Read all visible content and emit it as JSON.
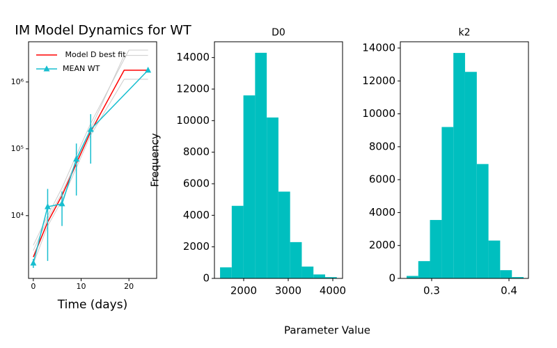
{
  "supxlabel": "Parameter Value",
  "chart_data": [
    {
      "type": "line",
      "title": "IM Model Dynamics for WT",
      "xlabel": "Time (days)",
      "log_y": true,
      "xlim": [
        -1,
        25.8
      ],
      "xticks": [
        0,
        10,
        20
      ],
      "ylim": [
        1150,
        4000000
      ],
      "yticks": [
        {
          "value": 10000,
          "label": "10⁴"
        },
        {
          "value": 100000,
          "label": "10⁵"
        },
        {
          "value": 1000000,
          "label": "10⁶"
        }
      ],
      "legend": "upper left",
      "series": [
        {
          "color": "#cccccc",
          "x": [
            0,
            3,
            6,
            9,
            12,
            19,
            24
          ],
          "values": [
            3000,
            9000,
            22000,
            65000,
            200000,
            2500000,
            2500000
          ]
        },
        {
          "color": "#cccccc",
          "x": [
            0,
            3,
            6,
            9,
            12,
            19,
            24
          ],
          "values": [
            1900,
            7000,
            17000,
            52000,
            160000,
            1100000,
            1100000
          ]
        },
        {
          "color": "#cccccc",
          "x": [
            0,
            3,
            6,
            9,
            12,
            20,
            24
          ],
          "values": [
            3600,
            10000,
            26000,
            80000,
            240000,
            3000000,
            3000000
          ]
        },
        {
          "name": " Model D best fit",
          "color": "#ff0000",
          "x": [
            0,
            3,
            6,
            9,
            12,
            19,
            24
          ],
          "values": [
            2400,
            8000,
            20000,
            60000,
            180000,
            1500000,
            1500000
          ]
        },
        {
          "name": "MEAN WT",
          "color": "#17becf",
          "marker": "triangle",
          "x": [
            0,
            3,
            6,
            9,
            12,
            24
          ],
          "values": [
            1950,
            13600,
            15000,
            70000,
            195000,
            1500000
          ],
          "errors": [
            300,
            11500,
            8000,
            50000,
            135000,
            100000
          ]
        }
      ]
    },
    {
      "type": "histogram",
      "title": "D0",
      "ylabel": "Frequency",
      "color": "#00bfbf",
      "bins": [
        1470,
        1732,
        1994,
        2256,
        2518,
        2780,
        3042,
        3304,
        3566,
        3828,
        4090
      ],
      "values": [
        700,
        4600,
        11600,
        14300,
        10200,
        5500,
        2300,
        750,
        250,
        80
      ],
      "xlim": [
        1344,
        4219
      ],
      "xticks": [
        2000,
        3000,
        4000
      ],
      "ylim": [
        0,
        15000
      ],
      "yticks": [
        0,
        2000,
        4000,
        6000,
        8000,
        10000,
        12000,
        14000
      ]
    },
    {
      "type": "histogram",
      "title": "k2",
      "color": "#00bfbf",
      "bins": [
        0.2676,
        0.2827,
        0.2978,
        0.313,
        0.3281,
        0.3432,
        0.3584,
        0.3735,
        0.3886,
        0.4038,
        0.4189
      ],
      "values": [
        150,
        1050,
        3550,
        9200,
        13700,
        12550,
        6950,
        2300,
        500,
        80
      ],
      "xlim": [
        0.2595,
        0.4252
      ],
      "xticks": [
        0.3,
        0.4
      ],
      "ylim": [
        0,
        14380
      ],
      "yticks": [
        0,
        2000,
        4000,
        6000,
        8000,
        10000,
        12000,
        14000
      ]
    }
  ]
}
